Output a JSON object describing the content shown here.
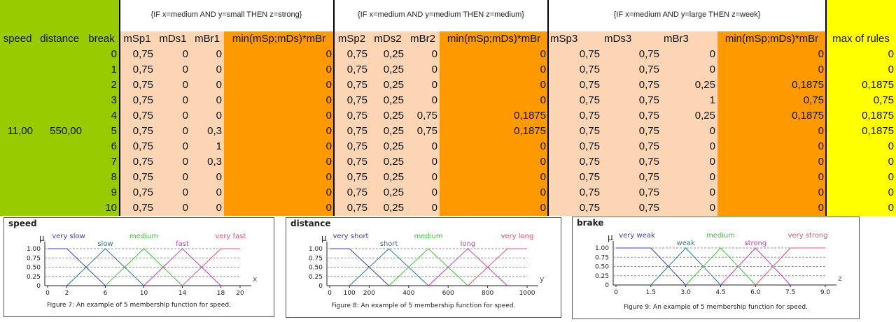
{
  "rules": [
    "{IF x=medium AND y=small THEN z=strong}",
    "{IF x=medium AND y=medium THEN z=medium}",
    "{IF x=medium AND y=large THEN z=week}"
  ],
  "table": {
    "header": [
      "speed",
      "distance",
      "break",
      "mSp1",
      "mDs1",
      "mBr1",
      "min(mSp;mDs)*mBr",
      "mSp2",
      "mDs2",
      "mBr2",
      "min(mSp;mDs)*mBr",
      "mSp3",
      "mDs3",
      "mBr3",
      "min(mSp;mDs)*mBr",
      "max of rules"
    ],
    "rows": [
      [
        null,
        null,
        "0",
        "0,75",
        "0",
        "0",
        "0",
        "0,75",
        "0,25",
        "0",
        "0",
        "0,75",
        "0,75",
        "0",
        "0",
        "0"
      ],
      [
        null,
        null,
        "1",
        "0,75",
        "0",
        "0",
        "0",
        "0,75",
        "0,25",
        "0",
        "0",
        "0,75",
        "0,75",
        "0",
        "0",
        "0"
      ],
      [
        null,
        null,
        "2",
        "0,75",
        "0",
        "0",
        "0",
        "0,75",
        "0,25",
        "0",
        "0",
        "0,75",
        "0,75",
        "0,25",
        "0,1875",
        "0,1875"
      ],
      [
        null,
        null,
        "3",
        "0,75",
        "0",
        "0",
        "0",
        "0,75",
        "0,25",
        "0",
        "0",
        "0,75",
        "0,75",
        "1",
        "0,75",
        "0,75"
      ],
      [
        null,
        null,
        "4",
        "0,75",
        "0",
        "0",
        "0",
        "0,75",
        "0,25",
        "0,75",
        "0,1875",
        "0,75",
        "0,75",
        "0,25",
        "0,1875",
        "0,1875"
      ],
      [
        "11,00",
        "550,00",
        "5",
        "0,75",
        "0",
        "0,3",
        "0",
        "0,75",
        "0,25",
        "0,75",
        "0,1875",
        "0,75",
        "0,75",
        "0",
        "0",
        "0,1875"
      ],
      [
        null,
        null,
        "6",
        "0,75",
        "0",
        "1",
        "0",
        "0,75",
        "0,25",
        "0",
        "0",
        "0,75",
        "0,75",
        "0",
        "0",
        "0"
      ],
      [
        null,
        null,
        "7",
        "0,75",
        "0",
        "0,3",
        "0",
        "0,75",
        "0,25",
        "0",
        "0",
        "0,75",
        "0,75",
        "0",
        "0",
        "0"
      ],
      [
        null,
        null,
        "8",
        "0,75",
        "0",
        "0",
        "0",
        "0,75",
        "0,25",
        "0",
        "0",
        "0,75",
        "0,75",
        "0",
        "0",
        "0"
      ],
      [
        null,
        null,
        "9",
        "0,75",
        "0",
        "0",
        "0",
        "0,75",
        "0,25",
        "0",
        "0",
        "0,75",
        "0,75",
        "0",
        "0",
        "0"
      ],
      [
        null,
        null,
        "10",
        "0,75",
        "0",
        "0",
        "0",
        "0,75",
        "0,25",
        "0",
        "0",
        "0,75",
        "0,75",
        "0",
        "0",
        "0"
      ]
    ]
  },
  "charts": [
    {
      "title": "speed",
      "ylabel": "μ",
      "axis_label": "x",
      "caption": "Figure 7: An example of 5 membership function for speed.",
      "xlim": [
        0,
        20
      ],
      "ylim": [
        0,
        1
      ],
      "xticks": [
        0,
        2,
        6,
        10,
        14,
        18,
        20
      ],
      "yticks": [
        0,
        {
          "value": 0.25,
          "label": "0.25"
        },
        {
          "value": 0.5,
          "label": "0.50"
        },
        {
          "value": 0.75,
          "label": "0.75"
        },
        {
          "value": 1,
          "label": "1.00"
        }
      ],
      "sets": [
        {
          "name": "very slow",
          "color": "#3a3ad0",
          "x": [
            0,
            2,
            6
          ],
          "y": [
            1,
            1,
            0
          ]
        },
        {
          "name": "slow",
          "color": "#2b7a8c",
          "x": [
            2,
            6,
            10
          ],
          "y": [
            0,
            1,
            0
          ]
        },
        {
          "name": "medium",
          "color": "#3cc83c",
          "x": [
            6,
            10,
            14
          ],
          "y": [
            0,
            1,
            0
          ]
        },
        {
          "name": "fast",
          "color": "#c83cc8",
          "x": [
            10,
            14,
            18
          ],
          "y": [
            0,
            1,
            0
          ]
        },
        {
          "name": "very fast",
          "color": "#f0506e",
          "x": [
            14,
            18,
            20
          ],
          "y": [
            0,
            1,
            1
          ]
        }
      ]
    },
    {
      "title": "distance",
      "ylabel": "μ",
      "axis_label": "y",
      "caption": "Figure 8: An example of 5 membership function for speed.",
      "xlim": [
        0,
        1000
      ],
      "ylim": [
        0,
        1
      ],
      "xticks": [
        0,
        100,
        200,
        400,
        600,
        800,
        1000
      ],
      "yticks": [
        0,
        {
          "value": 0.25,
          "label": "0.25"
        },
        {
          "value": 0.5,
          "label": "0.50"
        },
        {
          "value": 0.75,
          "label": "0.75"
        },
        {
          "value": 1,
          "label": "1.00"
        }
      ],
      "sets": [
        {
          "name": "very short",
          "color": "#3a3ad0",
          "x": [
            0,
            100,
            300
          ],
          "y": [
            1,
            1,
            0
          ]
        },
        {
          "name": "short",
          "color": "#2b7a8c",
          "x": [
            100,
            300,
            500
          ],
          "y": [
            0,
            1,
            0
          ]
        },
        {
          "name": "medium",
          "color": "#3cc83c",
          "x": [
            300,
            500,
            700
          ],
          "y": [
            0,
            1,
            0
          ]
        },
        {
          "name": "long",
          "color": "#c83cc8",
          "x": [
            500,
            700,
            900
          ],
          "y": [
            0,
            1,
            0
          ]
        },
        {
          "name": "very long",
          "color": "#f0506e",
          "x": [
            700,
            900,
            1000
          ],
          "y": [
            0,
            1,
            1
          ]
        }
      ]
    },
    {
      "title": "brake",
      "ylabel": "μ",
      "axis_label": "z",
      "caption": "Figure 9: An example of 5 membership function for speed.",
      "xlim": [
        0,
        9
      ],
      "ylim": [
        0,
        1
      ],
      "xticks": [
        0,
        1.5,
        {
          "value": 3,
          "label": "3.0"
        },
        4.5,
        {
          "value": 6,
          "label": "6.0"
        },
        7.5,
        {
          "value": 9,
          "label": "9.0"
        }
      ],
      "yticks": [
        0,
        {
          "value": 0.25,
          "label": "0.25"
        },
        {
          "value": 0.5,
          "label": "0.50"
        },
        {
          "value": 0.75,
          "label": "0.75"
        },
        {
          "value": 1,
          "label": "1.00"
        }
      ],
      "sets": [
        {
          "name": "very weak",
          "color": "#3a3ad0",
          "x": [
            0,
            1.5,
            3
          ],
          "y": [
            1,
            1,
            0
          ]
        },
        {
          "name": "weak",
          "color": "#2b7a8c",
          "x": [
            1.5,
            3,
            4.5
          ],
          "y": [
            0,
            1,
            0
          ]
        },
        {
          "name": "medium",
          "color": "#3cc83c",
          "x": [
            3,
            4.5,
            6
          ],
          "y": [
            0,
            1,
            0
          ]
        },
        {
          "name": "strong",
          "color": "#c83cc8",
          "x": [
            4.5,
            6,
            7.5
          ],
          "y": [
            0,
            1,
            0
          ]
        },
        {
          "name": "very strong",
          "color": "#f0506e",
          "x": [
            6,
            7.5,
            9
          ],
          "y": [
            0,
            1,
            1
          ]
        }
      ]
    }
  ]
}
